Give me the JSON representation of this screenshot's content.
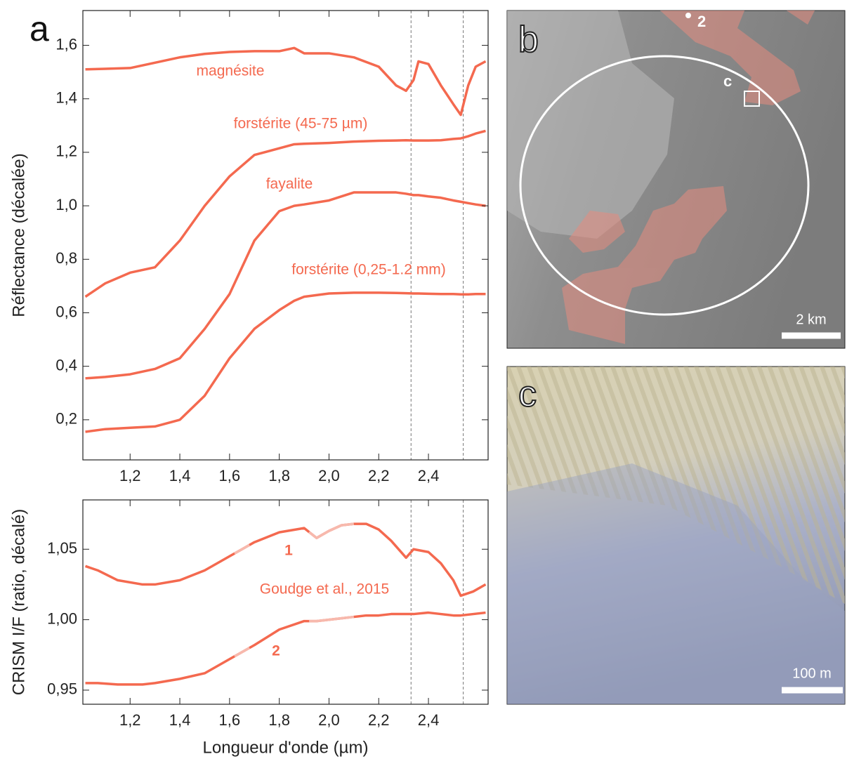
{
  "chart_data": [
    {
      "type": "line",
      "ylabel": "Réflectance (décalée)",
      "xlim": [
        1.01,
        2.64
      ],
      "ylim": [
        0.05,
        1.73
      ],
      "xticks": [
        {
          "value": 1.2,
          "label": "1,2"
        },
        {
          "value": 1.4,
          "label": "1,4"
        },
        {
          "value": 1.6,
          "label": "1,6"
        },
        {
          "value": 1.8,
          "label": "1,8"
        },
        {
          "value": 2.0,
          "label": "2,0"
        },
        {
          "value": 2.2,
          "label": "2,2"
        },
        {
          "value": 2.4,
          "label": "2,4"
        }
      ],
      "yticks": [
        {
          "value": 0.2,
          "label": "0,2"
        },
        {
          "value": 0.4,
          "label": "0,4"
        },
        {
          "value": 0.6,
          "label": "0,6"
        },
        {
          "value": 0.8,
          "label": "0,8"
        },
        {
          "value": 1.0,
          "label": "1,0"
        },
        {
          "value": 1.2,
          "label": "1,2"
        },
        {
          "value": 1.4,
          "label": "1,4"
        },
        {
          "value": 1.6,
          "label": "1,6"
        }
      ],
      "vlines": [
        2.33,
        2.54
      ],
      "x": [
        1.02,
        1.1,
        1.2,
        1.3,
        1.4,
        1.5,
        1.6,
        1.7,
        1.8,
        1.86,
        1.9,
        2.0,
        2.1,
        2.2,
        2.27,
        2.31,
        2.34,
        2.36,
        2.4,
        2.45,
        2.5,
        2.53,
        2.56,
        2.59,
        2.63
      ],
      "series": [
        {
          "name": "magnésite",
          "color": "#f4694f",
          "values": [
            1.51,
            1.512,
            1.515,
            1.535,
            1.555,
            1.568,
            1.575,
            1.578,
            1.578,
            1.59,
            1.57,
            1.57,
            1.555,
            1.52,
            1.45,
            1.43,
            1.47,
            1.54,
            1.53,
            1.45,
            1.38,
            1.34,
            1.45,
            1.52,
            1.54
          ]
        },
        {
          "name": "forstérite (45-75 µm)",
          "color": "#f4694f",
          "values": [
            0.66,
            0.71,
            0.75,
            0.77,
            0.87,
            1.0,
            1.11,
            1.19,
            1.215,
            1.23,
            1.232,
            1.235,
            1.24,
            1.243,
            1.244,
            1.245,
            1.244,
            1.244,
            1.244,
            1.245,
            1.25,
            1.252,
            1.26,
            1.27,
            1.28
          ]
        },
        {
          "name": "fayalite",
          "color": "#f4694f",
          "values": [
            0.355,
            0.36,
            0.37,
            0.39,
            0.43,
            0.54,
            0.67,
            0.87,
            0.98,
            1.0,
            1.005,
            1.02,
            1.05,
            1.05,
            1.05,
            1.045,
            1.04,
            1.04,
            1.035,
            1.03,
            1.02,
            1.015,
            1.01,
            1.005,
            1.0
          ]
        },
        {
          "name": "forstérite (0,25-1.2 mm)",
          "color": "#f4694f",
          "values": [
            0.155,
            0.165,
            0.17,
            0.175,
            0.2,
            0.29,
            0.43,
            0.54,
            0.61,
            0.645,
            0.66,
            0.672,
            0.675,
            0.675,
            0.674,
            0.673,
            0.672,
            0.672,
            0.671,
            0.67,
            0.67,
            0.669,
            0.669,
            0.67,
            0.67
          ]
        }
      ]
    },
    {
      "type": "line",
      "ylabel": "CRISM I/F (ratio, décalé)",
      "xlabel": "Longueur d'onde (µm)",
      "xlim": [
        1.01,
        2.64
      ],
      "ylim": [
        0.94,
        1.085
      ],
      "xticks": [
        {
          "value": 1.2,
          "label": "1,2"
        },
        {
          "value": 1.4,
          "label": "1,4"
        },
        {
          "value": 1.6,
          "label": "1,6"
        },
        {
          "value": 1.8,
          "label": "1,8"
        },
        {
          "value": 2.0,
          "label": "2,0"
        },
        {
          "value": 2.2,
          "label": "2,2"
        },
        {
          "value": 2.4,
          "label": "2,4"
        }
      ],
      "yticks": [
        {
          "value": 0.95,
          "label": "0,95"
        },
        {
          "value": 1.0,
          "label": "1,00"
        },
        {
          "value": 1.05,
          "label": "1,05"
        }
      ],
      "vlines": [
        2.33,
        2.54
      ],
      "highlights": [
        [
          1.62,
          1.68
        ],
        [
          1.92,
          2.1
        ]
      ],
      "highlight_color": "#f7b9ad",
      "annotations": [
        "Goudge et al., 2015"
      ],
      "x": [
        1.02,
        1.07,
        1.15,
        1.25,
        1.3,
        1.4,
        1.5,
        1.6,
        1.65,
        1.7,
        1.8,
        1.9,
        1.95,
        2.0,
        2.05,
        2.1,
        2.15,
        2.2,
        2.25,
        2.31,
        2.34,
        2.4,
        2.45,
        2.5,
        2.53,
        2.58,
        2.63
      ],
      "series": [
        {
          "name": "1",
          "color": "#f4694f",
          "values": [
            1.038,
            1.035,
            1.028,
            1.025,
            1.025,
            1.028,
            1.035,
            1.045,
            1.05,
            1.055,
            1.062,
            1.065,
            1.058,
            1.063,
            1.067,
            1.068,
            1.068,
            1.064,
            1.056,
            1.044,
            1.05,
            1.048,
            1.04,
            1.028,
            1.017,
            1.02,
            1.025
          ]
        },
        {
          "name": "2",
          "color": "#f4694f",
          "values": [
            0.955,
            0.955,
            0.954,
            0.954,
            0.955,
            0.958,
            0.962,
            0.972,
            0.977,
            0.982,
            0.993,
            0.999,
            0.999,
            1.0,
            1.001,
            1.002,
            1.003,
            1.003,
            1.004,
            1.004,
            1.004,
            1.005,
            1.004,
            1.003,
            1.003,
            1.004,
            1.005
          ]
        }
      ]
    }
  ],
  "panels": {
    "a": "a",
    "b": {
      "letter": "b",
      "marks": [
        "2",
        "c"
      ],
      "scale_bar": "2 km"
    },
    "c": {
      "letter": "c",
      "scale_bar": "100 m"
    }
  }
}
